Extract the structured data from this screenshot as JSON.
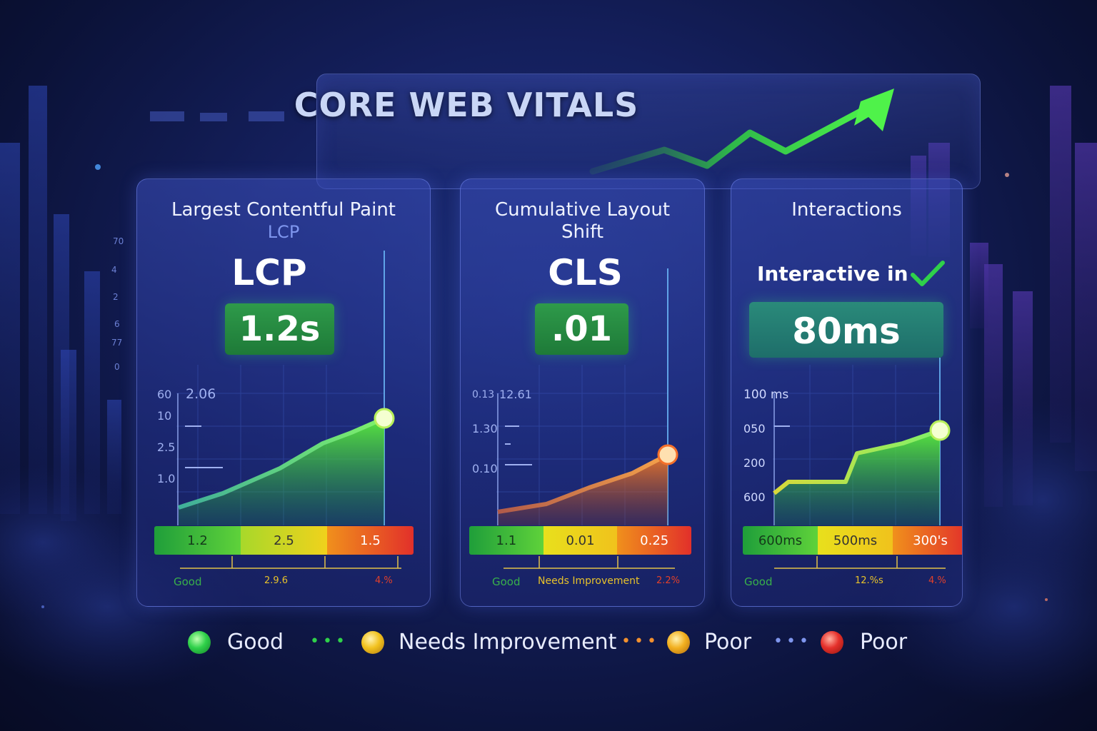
{
  "title": "CORE WEB VITALS",
  "cards": [
    {
      "title_line1": "Largest Contentful Paint",
      "subtitle": "LCP",
      "metric": "LCP",
      "value": "1.2s",
      "y_labels": [
        "60",
        "2.06",
        "10",
        "2.5",
        "1.0"
      ],
      "bar": [
        "1.2",
        "2.5",
        "1.5"
      ],
      "footer": [
        "Good",
        "2.9.6",
        "4.%"
      ]
    },
    {
      "title_line1": "Cumulative Layout",
      "title_line2": "Shift",
      "metric": "CLS",
      "value": ".01",
      "y_labels": [
        "0.13",
        "12.61",
        "1.30",
        "0.10"
      ],
      "bar": [
        "1.1",
        "0.01",
        "0.25"
      ],
      "footer": [
        "Good",
        "Needs Improvement",
        "2.2%"
      ]
    },
    {
      "title_line1": "Interactions",
      "metric": "Interactive in",
      "value": "80ms",
      "y_labels": [
        "100 ms",
        "050",
        "200",
        "600"
      ],
      "bar": [
        "600ms",
        "500ms",
        "300's"
      ],
      "footer": [
        "Good",
        "12.%s",
        "4.%"
      ]
    }
  ],
  "legend": [
    "Good",
    "Needs Improvement",
    "Poor",
    "Poor"
  ],
  "colors": {
    "good": "#2fd14a",
    "needs": "#f2c21f",
    "poor_orange": "#f28a1f",
    "poor_red": "#e5302b"
  }
}
